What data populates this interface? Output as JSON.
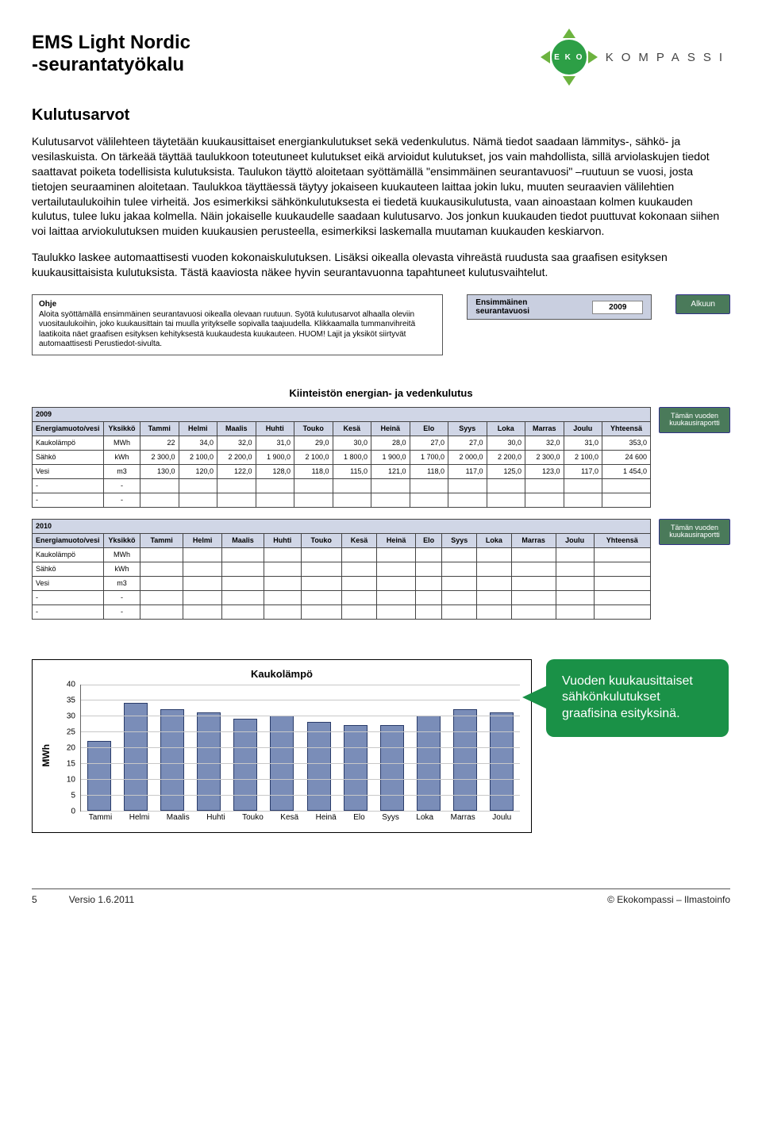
{
  "doc": {
    "title_line1": "EMS Light Nordic",
    "title_line2": "-seurantatyökalu",
    "logo_eko": "E K O",
    "logo_text": "KOMPASSI"
  },
  "section_heading": "Kulutusarvot",
  "para1": "Kulutusarvot välilehteen täytetään kuukausittaiset energiankulutukset sekä vedenkulutus. Nämä tiedot saadaan lämmitys-, sähkö- ja vesilaskuista. On tärkeää täyttää taulukkoon toteutuneet kulutukset eikä arvioidut kulutukset, jos vain mahdollista, sillä arviolaskujen tiedot saattavat poiketa todellisista kulutuksista. Taulukon täyttö aloitetaan syöttämällä \"ensimmäinen seurantavuosi\" –ruutuun se vuosi, josta tietojen seuraaminen aloitetaan. Taulukkoa täyttäessä täytyy jokaiseen kuukauteen laittaa jokin luku, muuten seuraavien välilehtien vertailutaulukoihin tulee virheitä. Jos esimerkiksi sähkönkulutuksesta ei tiedetä kuukausikulutusta, vaan ainoastaan kolmen kuukauden kulutus, tulee luku jakaa kolmella. Näin jokaiselle kuukaudelle saadaan kulutusarvo. Jos jonkun kuukauden tiedot puuttuvat kokonaan siihen voi laittaa arviokulutuksen muiden kuukausien perusteella, esimerkiksi laskemalla muutaman kuukauden keskiarvon.",
  "para2": "Taulukko laskee automaattisesti vuoden kokonaiskulutuksen. Lisäksi oikealla olevasta vihreästä ruudusta saa graafisen esityksen kuukausittaisista kulutuksista. Tästä kaaviosta näkee hyvin seurantavuonna tapahtuneet kulutusvaihtelut.",
  "ohje": {
    "title": "Ohje",
    "text": "Aloita syöttämällä ensimmäinen seurantavuosi oikealla olevaan ruutuun. Syötä kulutusarvot alhaalla oleviin vuositaulukoihin, joko kuukausittain tai muulla yritykselle sopivalla taajuudella. Klikkaamalla tummanvihreitä laatikoita näet graafisen esityksen kehityksestä kuukaudesta kuukauteen. HUOM! Lajit ja yksiköt siirtyvät automaattisesti Perustiedot-sivulta."
  },
  "yearbox": {
    "label": "Ensimmäinen seurantavuosi",
    "value": "2009"
  },
  "btn_start": "Alkuun",
  "table_title": "Kiinteistön energian- ja vedenkulutus",
  "months": [
    "Tammi",
    "Helmi",
    "Maalis",
    "Huhti",
    "Touko",
    "Kesä",
    "Heinä",
    "Elo",
    "Syys",
    "Loka",
    "Marras",
    "Joulu"
  ],
  "col_item": "Energiamuoto/vesi",
  "col_unit": "Yksikkö",
  "col_total": "Yhteensä",
  "report_btn": "Tämän vuoden kuukausiraportti",
  "t2009": {
    "year": "2009",
    "rows": [
      {
        "name": "Kaukolämpö",
        "unit": "MWh",
        "v": [
          "22",
          "34,0",
          "32,0",
          "31,0",
          "29,0",
          "30,0",
          "28,0",
          "27,0",
          "27,0",
          "30,0",
          "32,0",
          "31,0"
        ],
        "tot": "353,0"
      },
      {
        "name": "Sähkö",
        "unit": "kWh",
        "v": [
          "2 300,0",
          "2 100,0",
          "2 200,0",
          "1 900,0",
          "2 100,0",
          "1 800,0",
          "1 900,0",
          "1 700,0",
          "2 000,0",
          "2 200,0",
          "2 300,0",
          "2 100,0"
        ],
        "tot": "24 600"
      },
      {
        "name": "Vesi",
        "unit": "m3",
        "v": [
          "130,0",
          "120,0",
          "122,0",
          "128,0",
          "118,0",
          "115,0",
          "121,0",
          "118,0",
          "117,0",
          "125,0",
          "123,0",
          "117,0"
        ],
        "tot": "1 454,0"
      },
      {
        "name": "-",
        "unit": "-",
        "v": [
          "",
          "",
          "",
          "",
          "",
          "",
          "",
          "",
          "",
          "",
          "",
          ""
        ],
        "tot": ""
      },
      {
        "name": "-",
        "unit": "-",
        "v": [
          "",
          "",
          "",
          "",
          "",
          "",
          "",
          "",
          "",
          "",
          "",
          ""
        ],
        "tot": ""
      }
    ]
  },
  "t2010": {
    "year": "2010",
    "rows": [
      {
        "name": "Kaukolämpö",
        "unit": "MWh",
        "v": [
          "",
          "",
          "",
          "",
          "",
          "",
          "",
          "",
          "",
          "",
          "",
          ""
        ],
        "tot": ""
      },
      {
        "name": "Sähkö",
        "unit": "kWh",
        "v": [
          "",
          "",
          "",
          "",
          "",
          "",
          "",
          "",
          "",
          "",
          "",
          ""
        ],
        "tot": ""
      },
      {
        "name": "Vesi",
        "unit": "m3",
        "v": [
          "",
          "",
          "",
          "",
          "",
          "",
          "",
          "",
          "",
          "",
          "",
          ""
        ],
        "tot": ""
      },
      {
        "name": "-",
        "unit": "-",
        "v": [
          "",
          "",
          "",
          "",
          "",
          "",
          "",
          "",
          "",
          "",
          "",
          ""
        ],
        "tot": ""
      },
      {
        "name": "-",
        "unit": "-",
        "v": [
          "",
          "",
          "",
          "",
          "",
          "",
          "",
          "",
          "",
          "",
          "",
          ""
        ],
        "tot": ""
      }
    ]
  },
  "chart": {
    "title": "Kaukolämpö",
    "ylabel": "MWh",
    "ymax": 40,
    "ytick_step": 5,
    "bar_color": "#7a8db8",
    "bar_border": "#2a3c6a",
    "grid_color": "#c8c8c8",
    "categories": [
      "Tammi",
      "Helmi",
      "Maalis",
      "Huhti",
      "Touko",
      "Kesä",
      "Heinä",
      "Elo",
      "Syys",
      "Loka",
      "Marras",
      "Joulu"
    ],
    "values": [
      22,
      34,
      32,
      31,
      29,
      30,
      28,
      27,
      27,
      30,
      32,
      31
    ]
  },
  "callout": "Vuoden kuukausittaiset sähkönkulutukset graafisina esityksinä.",
  "footer": {
    "page": "5",
    "version": "Versio 1.6.2011",
    "right": "© Ekokompassi – Ilmastoinfo"
  }
}
